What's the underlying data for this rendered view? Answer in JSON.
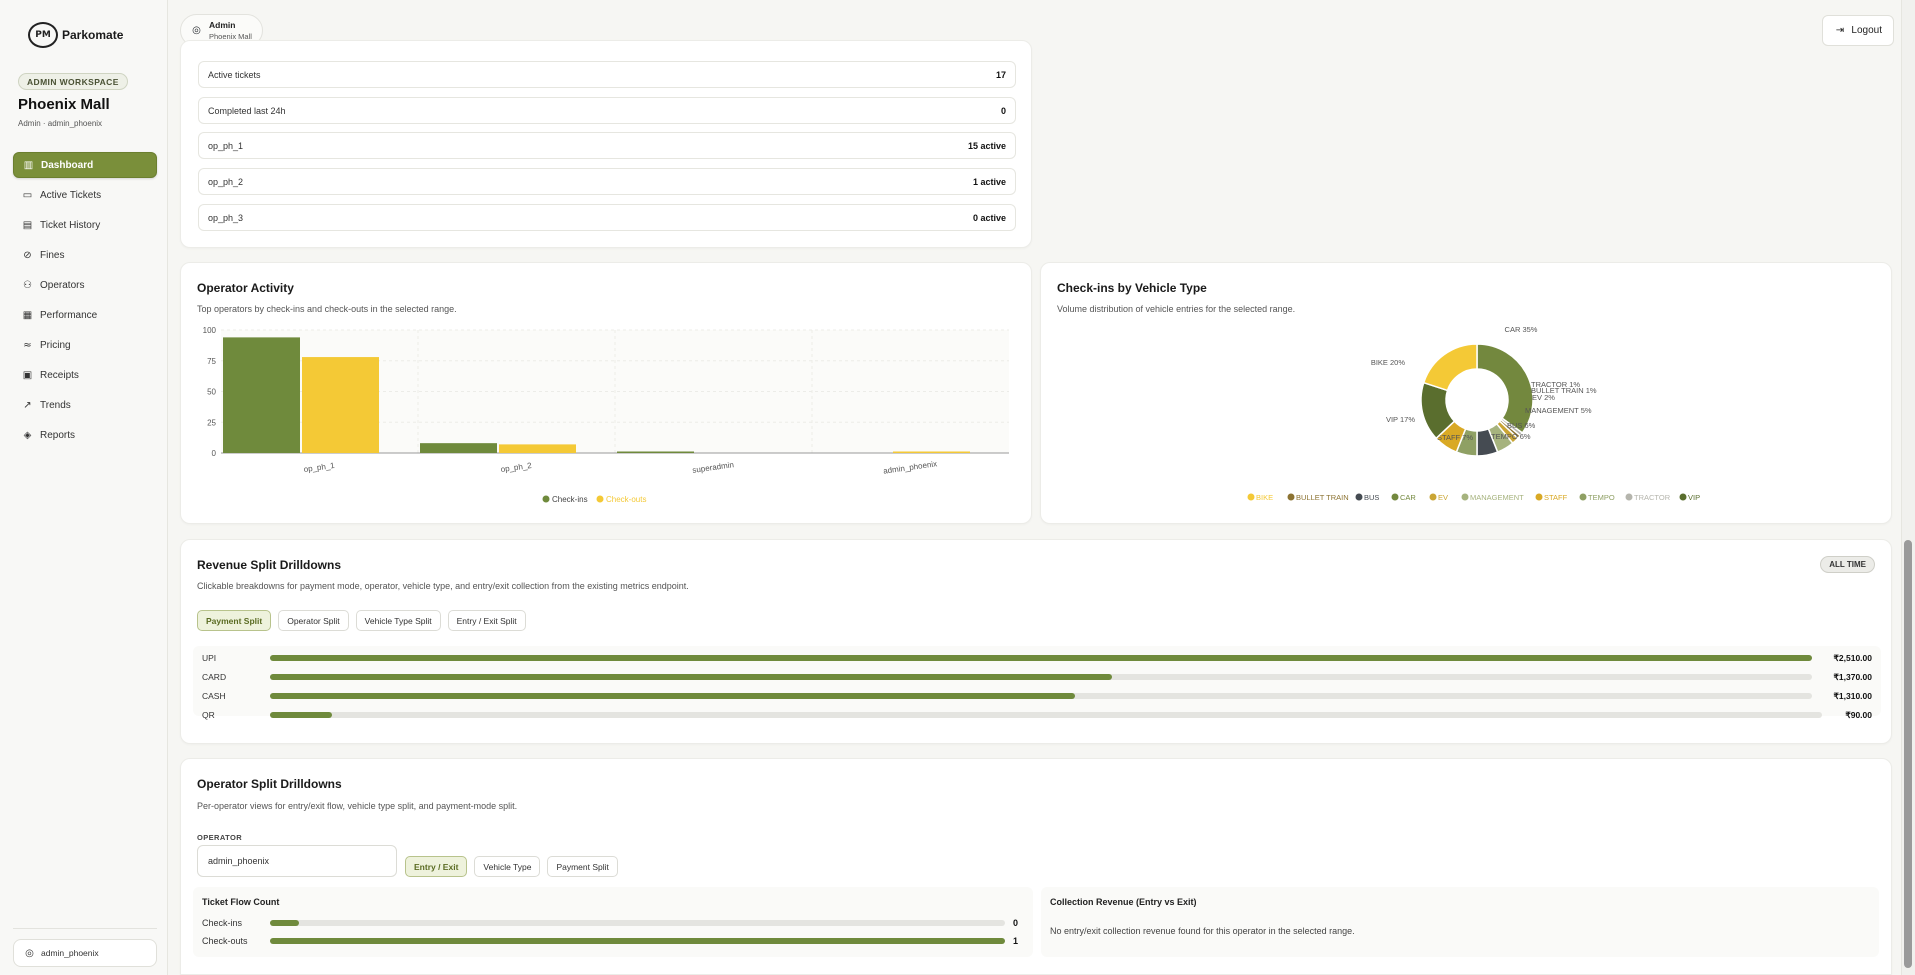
{
  "brand": {
    "logo_mark": "PM",
    "name": "Parkomate"
  },
  "workspace": {
    "badge": "ADMIN WORKSPACE",
    "org_name": "Phoenix Mall",
    "org_sub": "Admin · admin_phoenix"
  },
  "nav": {
    "items": [
      {
        "label": "Dashboard",
        "icon": "chart-icon"
      },
      {
        "label": "Active Tickets",
        "icon": "ticket-icon"
      },
      {
        "label": "Ticket History",
        "icon": "history-icon"
      },
      {
        "label": "Fines",
        "icon": "fines-icon"
      },
      {
        "label": "Operators",
        "icon": "users-icon"
      },
      {
        "label": "Performance",
        "icon": "performance-icon"
      },
      {
        "label": "Pricing",
        "icon": "pricing-icon"
      },
      {
        "label": "Receipts",
        "icon": "receipt-icon"
      },
      {
        "label": "Trends",
        "icon": "trend-icon"
      },
      {
        "label": "Reports",
        "icon": "reports-icon"
      }
    ]
  },
  "user_chip": {
    "label": "admin_phoenix"
  },
  "topbar": {
    "role": "Admin",
    "site": "Phoenix Mall",
    "logout": "Logout"
  },
  "stats": [
    {
      "label": "Active tickets",
      "value": "17"
    },
    {
      "label": "Completed last 24h",
      "value": "0"
    },
    {
      "label": "op_ph_1",
      "value": "15 active"
    },
    {
      "label": "op_ph_2",
      "value": "1 active"
    },
    {
      "label": "op_ph_3",
      "value": "0 active"
    }
  ],
  "operator_activity": {
    "title": "Operator Activity",
    "subtitle": "Top operators by check-ins and check-outs in the selected range."
  },
  "vehicle_checkins": {
    "title": "Check-ins by Vehicle Type",
    "subtitle": "Volume distribution of vehicle entries for the selected range."
  },
  "chart_data": [
    {
      "type": "bar",
      "categories": [
        "op_ph_1",
        "op_ph_2",
        "superadmin",
        "admin_phoenix"
      ],
      "series": [
        {
          "name": "Check-ins",
          "values": [
            94,
            8,
            1,
            0
          ],
          "color": "#6f8a3c"
        },
        {
          "name": "Check-outs",
          "values": [
            78,
            7,
            0,
            1
          ],
          "color": "#f4c936"
        }
      ],
      "yticks": [
        100,
        75,
        50,
        25,
        0
      ],
      "ylim": [
        0,
        100
      ],
      "grid": true,
      "legend": "bottom-center"
    },
    {
      "type": "pie",
      "categories": [
        "CAR",
        "TRACTOR",
        "BULLET TRAIN",
        "EV",
        "MANAGEMENT",
        "BUS",
        "TEMPO",
        "STAFF",
        "VIP",
        "BIKE"
      ],
      "values": [
        35,
        1,
        1,
        2,
        5,
        6,
        6,
        7,
        17,
        20
      ],
      "slice_labels": [
        "CAR 35%",
        "TRACTOR 1%",
        "BULLET TRAIN 1%",
        "EV 2%",
        "MANAGEMENT 5%",
        "BUS 6%",
        "TEMPO 6%",
        "STAFF 7%",
        "VIP 17%",
        "BIKE 20%"
      ],
      "colors": [
        "#73883e",
        "#b5b5ad",
        "#8c7332",
        "#caa534",
        "#a6b37e",
        "#454b52",
        "#8fa064",
        "#d9a925",
        "#5a6e2e",
        "#f4c936"
      ],
      "legend_order": [
        {
          "name": "BIKE",
          "color": "#f4c936"
        },
        {
          "name": "BULLET TRAIN",
          "color": "#8c7332"
        },
        {
          "name": "BUS",
          "color": "#454b52"
        },
        {
          "name": "CAR",
          "color": "#73883e"
        },
        {
          "name": "EV",
          "color": "#caa534"
        },
        {
          "name": "MANAGEMENT",
          "color": "#a6b37e"
        },
        {
          "name": "STAFF",
          "color": "#d9a925"
        },
        {
          "name": "TEMPO",
          "color": "#8fa064"
        },
        {
          "name": "TRACTOR",
          "color": "#b5b5ad"
        },
        {
          "name": "VIP",
          "color": "#5a6e2e"
        }
      ],
      "legend": "bottom-center",
      "donut": true
    }
  ],
  "revenue": {
    "title": "Revenue Split Drilldowns",
    "subtitle": "Clickable breakdowns for payment mode, operator, vehicle type, and entry/exit collection from the existing metrics endpoint.",
    "badge": "ALL TIME",
    "tabs": [
      "Payment Split",
      "Operator Split",
      "Vehicle Type Split",
      "Entry / Exit Split"
    ],
    "rows": [
      {
        "label": "UPI",
        "amount": "₹2,510.00",
        "fraction": 1.0
      },
      {
        "label": "CARD",
        "amount": "₹1,370.00",
        "fraction": 0.546
      },
      {
        "label": "CASH",
        "amount": "₹1,310.00",
        "fraction": 0.522
      },
      {
        "label": "QR",
        "amount": "₹90.00",
        "fraction": 0.04
      }
    ]
  },
  "operator_split": {
    "title": "Operator Split Drilldowns",
    "subtitle": "Per-operator views for entry/exit flow, vehicle type split, and payment-mode split.",
    "operator_label": "OPERATOR",
    "operator_value": "admin_phoenix",
    "tabs": [
      "Entry / Exit",
      "Vehicle Type",
      "Payment Split"
    ],
    "flow_title": "Ticket Flow Count",
    "flow_rows": [
      {
        "label": "Check-ins",
        "value": "0",
        "fraction": 0.04
      },
      {
        "label": "Check-outs",
        "value": "1",
        "fraction": 1.0
      }
    ],
    "collection_title": "Collection Revenue (Entry vs Exit)",
    "collection_empty": "No entry/exit collection revenue found for this operator in the selected range."
  }
}
